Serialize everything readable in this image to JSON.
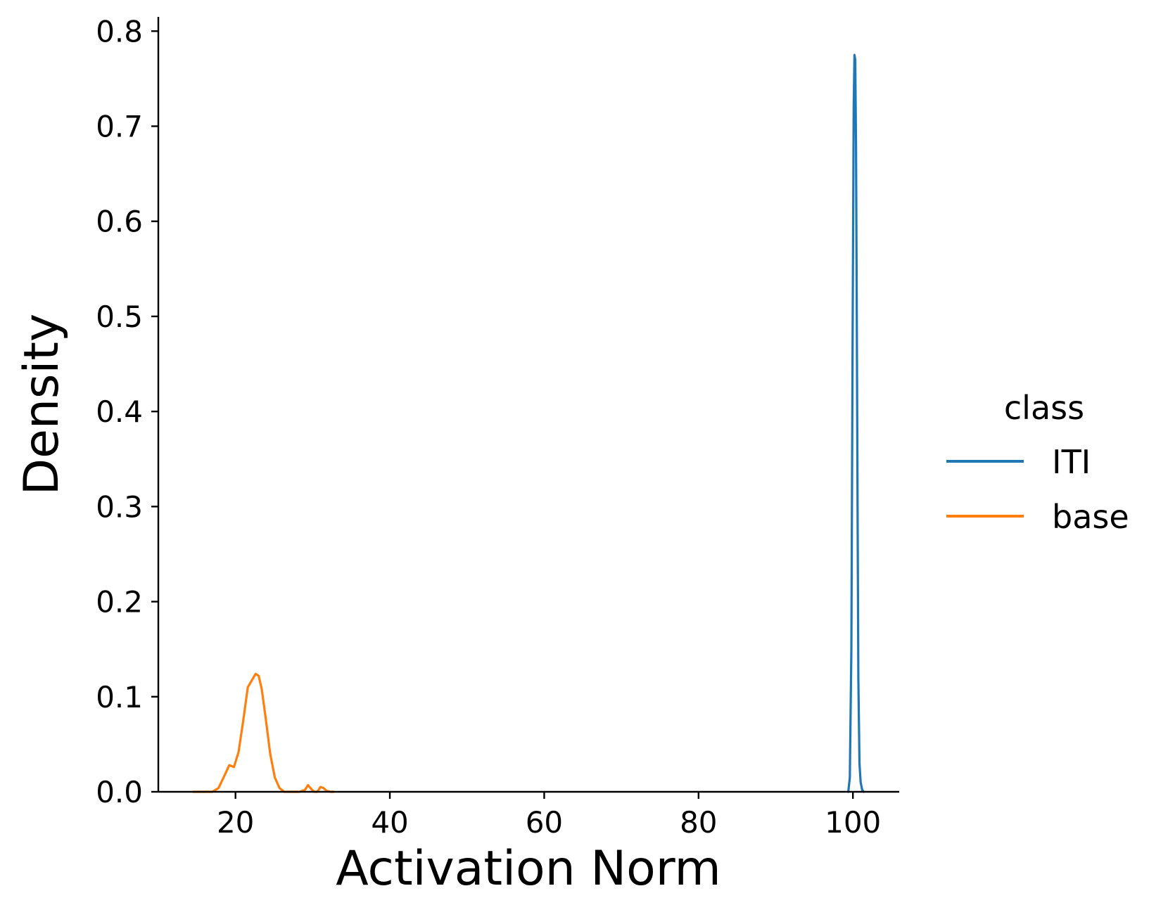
{
  "chart_data": {
    "type": "line",
    "xlabel": "Activation Norm",
    "ylabel": "Density",
    "xlim": [
      10,
      106
    ],
    "ylim": [
      0,
      0.815
    ],
    "x_ticks": [
      20,
      40,
      60,
      80,
      100
    ],
    "x_tick_labels": [
      "20",
      "40",
      "60",
      "80",
      "100"
    ],
    "y_ticks": [
      0.0,
      0.1,
      0.2,
      0.3,
      0.4,
      0.5,
      0.6,
      0.7,
      0.8
    ],
    "y_tick_labels": [
      "0.0",
      "0.1",
      "0.2",
      "0.3",
      "0.4",
      "0.5",
      "0.6",
      "0.7",
      "0.8"
    ],
    "grid": false,
    "legend": {
      "title": "class",
      "position": "right",
      "entries": [
        "ITI",
        "base"
      ]
    },
    "series": [
      {
        "name": "ITI",
        "color": "#1f77b4",
        "x": [
          99.4,
          99.6,
          99.8,
          99.95,
          100.1,
          100.2,
          100.3,
          100.4,
          100.5,
          100.6,
          100.7,
          100.85,
          101.0,
          101.2,
          101.4
        ],
        "y": [
          0.0,
          0.015,
          0.15,
          0.45,
          0.72,
          0.775,
          0.77,
          0.68,
          0.5,
          0.3,
          0.12,
          0.03,
          0.01,
          0.002,
          0.0
        ]
      },
      {
        "name": "base",
        "color": "#ff7f0e",
        "x": [
          14.5,
          17,
          17.8,
          18.4,
          19.2,
          19.8,
          20.4,
          21.0,
          21.6,
          22.1,
          22.6,
          23.0,
          23.4,
          23.9,
          24.5,
          25.1,
          25.7,
          26.3,
          26.8,
          27.5,
          28.3,
          29.0,
          29.4,
          29.8,
          30.2,
          30.6,
          31.0,
          31.4,
          31.8,
          32.3,
          32.7
        ],
        "y": [
          0.0,
          0.0,
          0.004,
          0.014,
          0.028,
          0.026,
          0.042,
          0.075,
          0.11,
          0.117,
          0.124,
          0.122,
          0.108,
          0.078,
          0.04,
          0.015,
          0.004,
          0.0,
          0.0,
          0.0,
          0.0,
          0.002,
          0.007,
          0.003,
          0.0,
          0.0,
          0.005,
          0.004,
          0.001,
          0.0,
          0.0
        ]
      }
    ]
  }
}
